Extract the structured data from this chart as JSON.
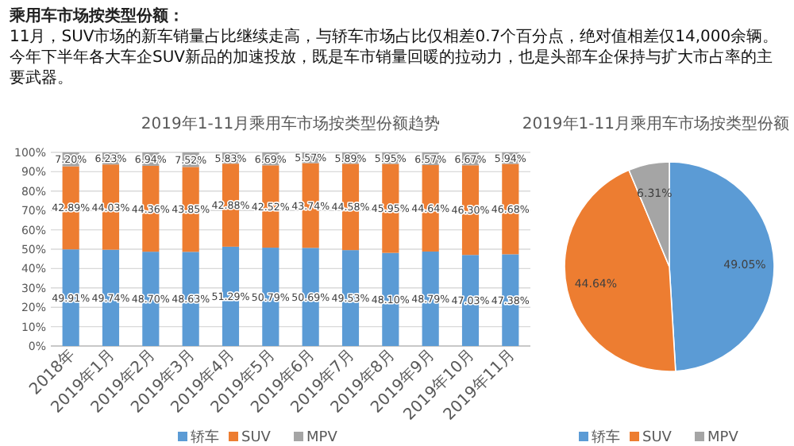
{
  "chart_data": [
    {
      "type": "bar",
      "stacked": true,
      "title": "2019年1-11月乘用车市场按类型份额趋势",
      "annotations": [
        "乘用车市场按类型份额：",
        "11月，SUV市场的新车销量占比继续走高，与轿车市场占比仅相差0.7个百分点，绝对值相差仅14,000余辆。今年下半年各大车企SUV新品的加速投放，既是车市销量回暖的拉动力，也是头部车企保持与扩大市占率的主要武器。"
      ],
      "categories": [
        "2018年",
        "2019年1月",
        "2019年2月",
        "2019年3月",
        "2019年4月",
        "2019年5月",
        "2019年6月",
        "2019年7月",
        "2019年8月",
        "2019年9月",
        "2019年10月",
        "2019年11月"
      ],
      "series": [
        {
          "name": "轿车",
          "color": "#5b9bd5",
          "values": [
            49.91,
            49.74,
            48.7,
            48.63,
            51.29,
            50.79,
            50.69,
            49.53,
            48.1,
            48.79,
            47.03,
            47.38
          ],
          "value_labels": [
            "49.91%",
            "49.74%",
            "48.70%",
            "48.63%",
            "51.29%",
            "50.79%",
            "50.69%",
            "49.53%",
            "48.10%",
            "48.79%",
            "47.03%",
            "47.38%"
          ]
        },
        {
          "name": "SUV",
          "color": "#ed7d31",
          "values": [
            42.89,
            44.03,
            44.36,
            43.85,
            42.88,
            42.52,
            43.74,
            44.58,
            45.95,
            44.64,
            46.3,
            46.68
          ],
          "value_labels": [
            "42.89%",
            "44.03%",
            "44.36%",
            "43.85%",
            "42.88%",
            "42.52%",
            "43.74%",
            "44.58%",
            "45.95%",
            "44.64%",
            "46.30%",
            "46.68%"
          ]
        },
        {
          "name": "MPV",
          "color": "#a5a5a5",
          "values": [
            7.2,
            6.23,
            6.94,
            7.52,
            5.83,
            6.69,
            5.57,
            5.89,
            5.95,
            6.57,
            6.67,
            5.94
          ],
          "value_labels": [
            "7.20%",
            "6.23%",
            "6.94%",
            "7.52%",
            "5.83%",
            "6.69%",
            "5.57%",
            "5.89%",
            "5.95%",
            "6.57%",
            "6.67%",
            "5.94%"
          ]
        }
      ],
      "ylim": [
        0,
        100
      ],
      "yticks": [
        {
          "value": 0,
          "label": "0%"
        },
        {
          "value": 10,
          "label": "10%"
        },
        {
          "value": 20,
          "label": "20%"
        },
        {
          "value": 30,
          "label": "30%"
        },
        {
          "value": 40,
          "label": "40%"
        },
        {
          "value": 50,
          "label": "50%"
        },
        {
          "value": 60,
          "label": "60%"
        },
        {
          "value": 70,
          "label": "70%"
        },
        {
          "value": 80,
          "label": "80%"
        },
        {
          "value": 90,
          "label": "90%"
        },
        {
          "value": 100,
          "label": "100%"
        }
      ],
      "grid": "y",
      "legend": "bottom"
    },
    {
      "type": "pie",
      "title": "2019年1-11月乘用车市场按类型份额",
      "categories": [
        "轿车",
        "SUV",
        "MPV"
      ],
      "values": [
        49.05,
        44.64,
        6.31
      ],
      "colors": [
        "#5b9bd5",
        "#ed7d31",
        "#a5a5a5"
      ],
      "value_labels": [
        "49.05%",
        "44.64%",
        "6.31%"
      ],
      "legend": "bottom"
    }
  ]
}
